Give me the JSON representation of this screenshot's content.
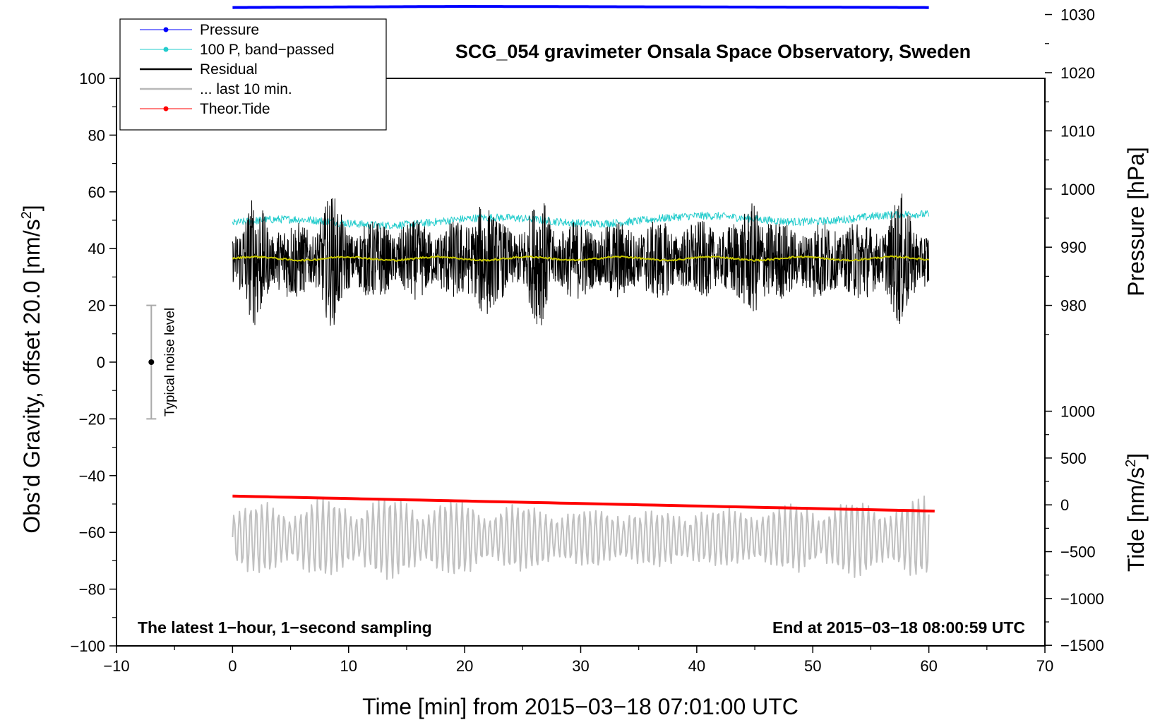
{
  "chart_data": {
    "type": "line",
    "title": "SCG_054 gravimeter Onsala Space Observatory, Sweden",
    "xlabel": "Time [min] from 2015−03−18 07:01:00 UTC",
    "ylabel": "Obs’d Gravity, offset 20.0 [nm/s²]",
    "ylabel_parts": {
      "main": "Obs’d Gravity, offset 20.0 [nm/s",
      "sup": "2",
      "close": "]"
    },
    "xlim": [
      -10,
      70
    ],
    "ylim": [
      -100,
      100
    ],
    "xticks": [
      -10,
      0,
      10,
      20,
      30,
      40,
      50,
      60,
      70
    ],
    "xtick_labels": [
      "−10",
      "0",
      "10",
      "20",
      "30",
      "40",
      "50",
      "60",
      "70"
    ],
    "yticks": [
      -100,
      -80,
      -60,
      -40,
      -20,
      0,
      20,
      40,
      60,
      80,
      100
    ],
    "ytick_labels": [
      "−100",
      "−80",
      "−60",
      "−40",
      "−20",
      "0",
      "20",
      "40",
      "60",
      "80",
      "100"
    ],
    "pressure_axis": {
      "label": "Pressure [hPa]",
      "ticks": [
        980,
        990,
        1000,
        1010,
        1020,
        1030
      ],
      "tick_labels": [
        "980",
        "990",
        "1000",
        "1010",
        "1020",
        "1030"
      ],
      "mapping": {
        "ref_value": 980,
        "ref_gravity": 20,
        "nm_per_hpa": 2.05
      }
    },
    "tide_axis": {
      "label_parts": {
        "main": "Tide [nm/s",
        "sup": "2",
        "close": "]"
      },
      "ticks": [
        -1500,
        -1000,
        -500,
        0,
        500,
        1000
      ],
      "tick_labels": [
        "−1500",
        "−1000",
        "−500",
        "0",
        "500",
        "1000"
      ],
      "mapping": {
        "ref_value": 0,
        "ref_gravity": -50.3,
        "nm_per_unit": 0.033
      }
    },
    "series": [
      {
        "name": "Pressure",
        "color": "#0000ff",
        "x_range": [
          0,
          60
        ],
        "pressure_hpa": [
          1031.2,
          1031.4,
          1031.3,
          1031.2
        ],
        "note": "flat near 1031 hPa"
      },
      {
        "name": "100 P, band−passed",
        "color": "#22cccc",
        "x_range": [
          0,
          60
        ],
        "level_start": 49,
        "level_end": 51,
        "amplitude": 2
      },
      {
        "name": "Residual",
        "color": "#000000",
        "x_range": [
          0,
          60
        ],
        "mean": 36,
        "amplitude": 14,
        "bursts_min": [
          2,
          8.5,
          21.5,
          26.5,
          45,
          57.5
        ]
      },
      {
        "name": "... last 10 min.",
        "color": "#c0c0c0",
        "x_range": [
          0,
          60
        ],
        "mean": -62,
        "amplitude": 14
      },
      {
        "name": "Theor.Tide",
        "color": "#ff0000",
        "x_range": [
          0,
          60.5
        ],
        "y_start": -47.2,
        "y_end": -52.5
      },
      {
        "name": "mean (unlabelled)",
        "color": "#c8c800",
        "x_range": [
          0,
          60
        ],
        "mean": 36.5
      }
    ],
    "legend": {
      "position": "top-left",
      "entries": [
        {
          "label": "Pressure",
          "color": "#0000ff",
          "style": "line-dot"
        },
        {
          "label": "100 P, band−passed",
          "color": "#22cccc",
          "style": "line-dot"
        },
        {
          "label": "Residual",
          "color": "#000000",
          "style": "thick-line"
        },
        {
          "label": "... last 10 min.",
          "color": "#b8b8b8",
          "style": "thick-line"
        },
        {
          "label": "Theor.Tide",
          "color": "#ff0000",
          "style": "line-dot"
        }
      ]
    },
    "noise_bar": {
      "label": "Typical noise level",
      "x": -7,
      "center": 0,
      "low": -20,
      "high": 20
    },
    "annotations": {
      "bottom_left": "The latest 1−hour, 1−second sampling",
      "bottom_right": "End at 2015−03−18 08:00:59 UTC"
    }
  }
}
